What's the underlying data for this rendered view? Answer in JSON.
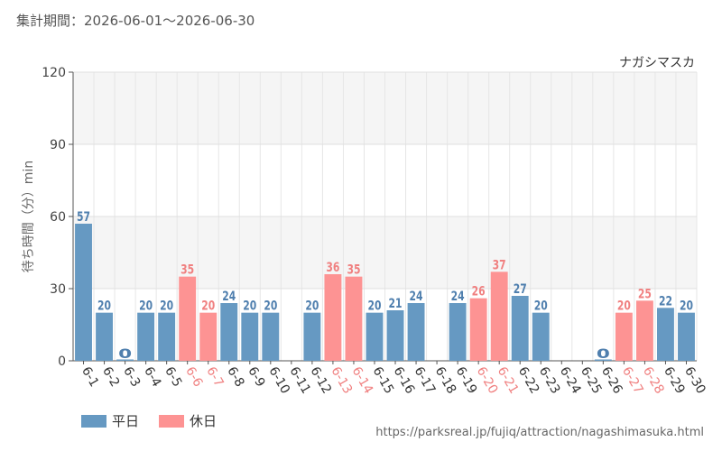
{
  "period_label": "集計期間：2026-06-01〜2026-06-30",
  "source_url": "https://parksreal.jp/fujiq/attraction/nagashimasuka.html",
  "colors": {
    "weekday": "#6699c2",
    "holiday": "#fd9393",
    "holiday_label": "#f08080",
    "weekday_label": "#4f7fae"
  },
  "legend": [
    {
      "label": "平日",
      "key": "weekday"
    },
    {
      "label": "休日",
      "key": "holiday"
    }
  ],
  "chart_data": {
    "type": "bar",
    "title": "ナガシマスカ",
    "ylabel": "待ち時間（分）min",
    "xlabel": "",
    "ylim": [
      0,
      120
    ],
    "yticks": [
      0,
      30,
      60,
      90,
      120
    ],
    "grid": true,
    "legend_position": "bottom-left",
    "categories": [
      "6-1",
      "6-2",
      "6-3",
      "6-4",
      "6-5",
      "6-6",
      "6-7",
      "6-8",
      "6-9",
      "6-10",
      "6-11",
      "6-12",
      "6-13",
      "6-14",
      "6-15",
      "6-16",
      "6-17",
      "6-18",
      "6-19",
      "6-20",
      "6-21",
      "6-22",
      "6-23",
      "6-24",
      "6-25",
      "6-26",
      "6-27",
      "6-28",
      "6-29",
      "6-30"
    ],
    "values": [
      57,
      20,
      0,
      20,
      20,
      35,
      20,
      24,
      20,
      20,
      null,
      20,
      36,
      35,
      20,
      21,
      24,
      null,
      24,
      26,
      37,
      27,
      20,
      null,
      null,
      0,
      20,
      25,
      22,
      20
    ],
    "day_type": [
      "weekday",
      "weekday",
      "weekday",
      "weekday",
      "weekday",
      "holiday",
      "holiday",
      "weekday",
      "weekday",
      "weekday",
      "weekday",
      "weekday",
      "holiday",
      "holiday",
      "weekday",
      "weekday",
      "weekday",
      "weekday",
      "weekday",
      "holiday",
      "holiday",
      "weekday",
      "weekday",
      "weekday",
      "weekday",
      "weekday",
      "holiday",
      "holiday",
      "weekday",
      "weekday"
    ]
  }
}
